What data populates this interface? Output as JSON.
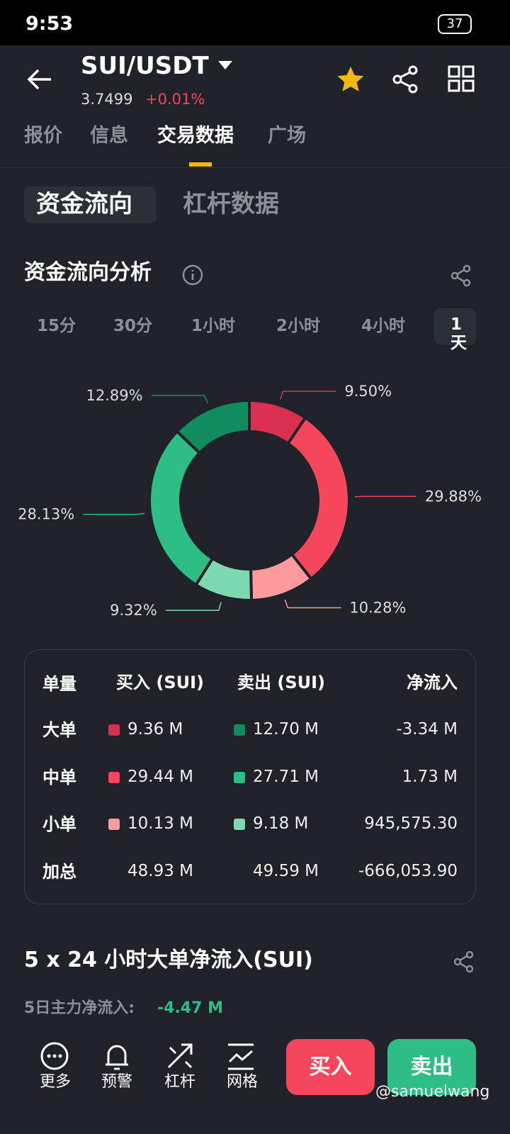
{
  "status_bar": {
    "time": "9:53",
    "battery": "37"
  },
  "header": {
    "pair": "SUI/USDT",
    "price": "3.7499",
    "change": "+0.01%"
  },
  "tabs": [
    "报价",
    "信息",
    "交易数据",
    "广场"
  ],
  "sub_tabs": [
    "资金流向",
    "杠杆数据"
  ],
  "section_title": "资金流向分析",
  "periods": [
    "15分",
    "30分",
    "1小时",
    "2小时",
    "4小时",
    "1天"
  ],
  "chart_data": {
    "type": "donut",
    "values": [
      9.5,
      29.88,
      10.28,
      9.32,
      28.13,
      12.89
    ],
    "value_labels": [
      "9.50%",
      "29.88%",
      "10.28%",
      "9.32%",
      "28.13%",
      "12.89%"
    ],
    "colors": [
      "#d9304f",
      "#f6465d",
      "#ff9a9e",
      "#7dd9b0",
      "#2ebd85",
      "#108c5e"
    ]
  },
  "table": {
    "header": [
      "单量",
      "买入 (SUI)",
      "卖出 (SUI)",
      "净流入"
    ],
    "rows": [
      [
        "大单",
        "9.36 M",
        "12.70 M",
        "-3.34 M"
      ],
      [
        "中单",
        "29.44 M",
        "27.71 M",
        "1.73 M"
      ],
      [
        "小单",
        "10.13 M",
        "9.18 M",
        "945,575.30"
      ],
      [
        "加总",
        "48.93 M",
        "49.59 M",
        "-666,053.90"
      ]
    ]
  },
  "section2": {
    "title": "5 x 24 小时大单净流入(SUI)",
    "summary_label": "5日主力净流入:",
    "summary_value": "-4.47 M"
  },
  "nav": [
    "更多",
    "预警",
    "杠杆",
    "网格"
  ],
  "buttons": [
    "买入",
    "卖出"
  ],
  "watermark": "@samuelwang"
}
